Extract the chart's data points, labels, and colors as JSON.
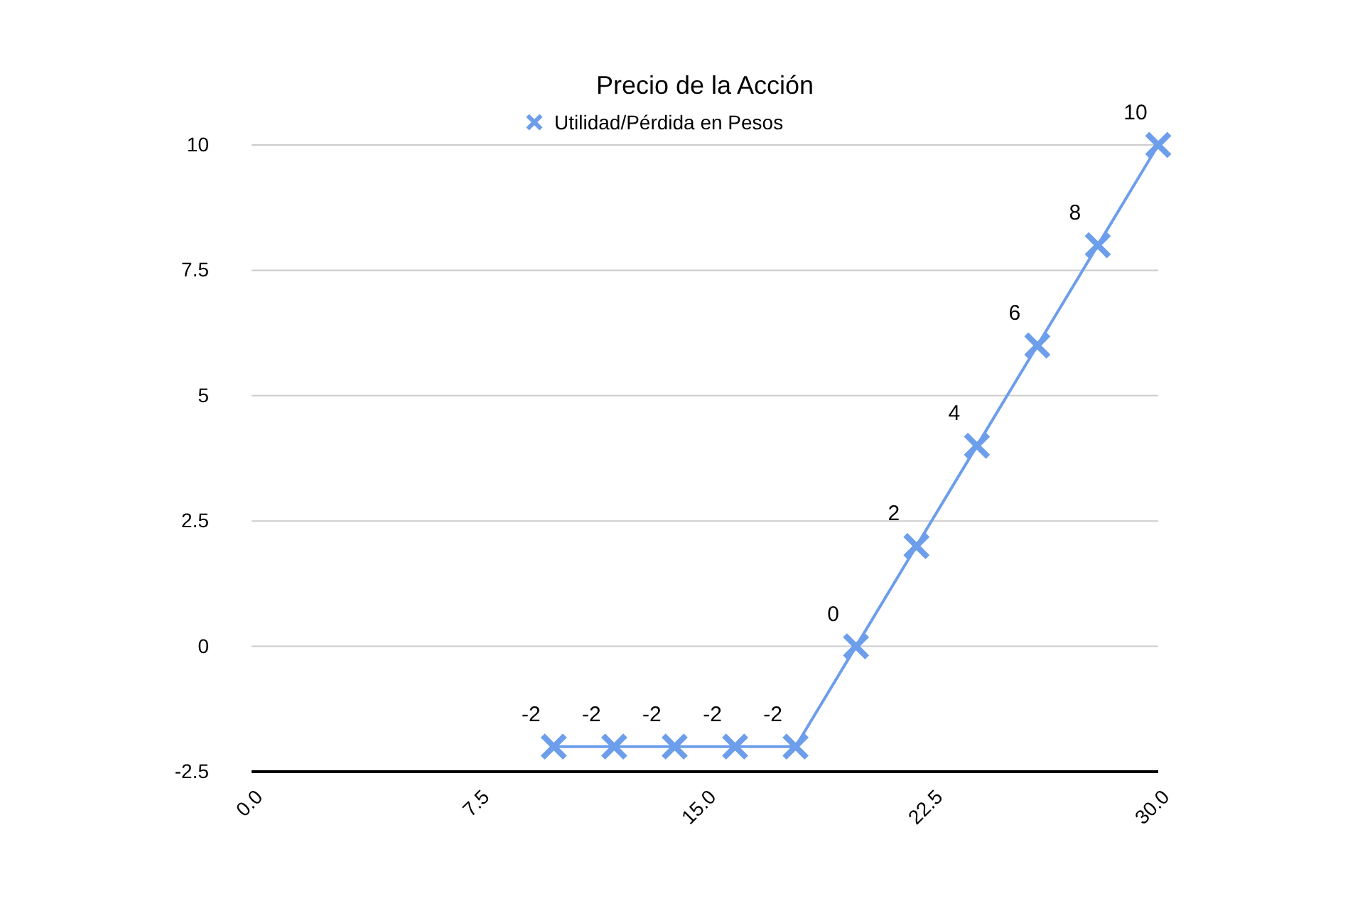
{
  "chart_data": {
    "type": "line",
    "title": "Precio de la Acción",
    "x": [
      10,
      12,
      14,
      16,
      18,
      20,
      22,
      24,
      26,
      28,
      30
    ],
    "series": [
      {
        "name": "Utilidad/Pérdida en Pesos",
        "color": "#6d9eeb",
        "values": [
          -2,
          -2,
          -2,
          -2,
          -2,
          0,
          2,
          4,
          6,
          8,
          10
        ]
      }
    ],
    "xlim": [
      0,
      30
    ],
    "xticks": [
      {
        "value": 0,
        "label": "0.0"
      },
      7.5,
      {
        "value": 15,
        "label": "15.0"
      },
      22.5,
      {
        "value": 30,
        "label": "30.0"
      }
    ],
    "ylim": [
      -2.5,
      10
    ],
    "yticks": [
      -2.5,
      0,
      2.5,
      5,
      7.5,
      10
    ],
    "grid": "y",
    "legend": "top",
    "marker": "cross",
    "line_style": "solid",
    "data_labels": true
  }
}
